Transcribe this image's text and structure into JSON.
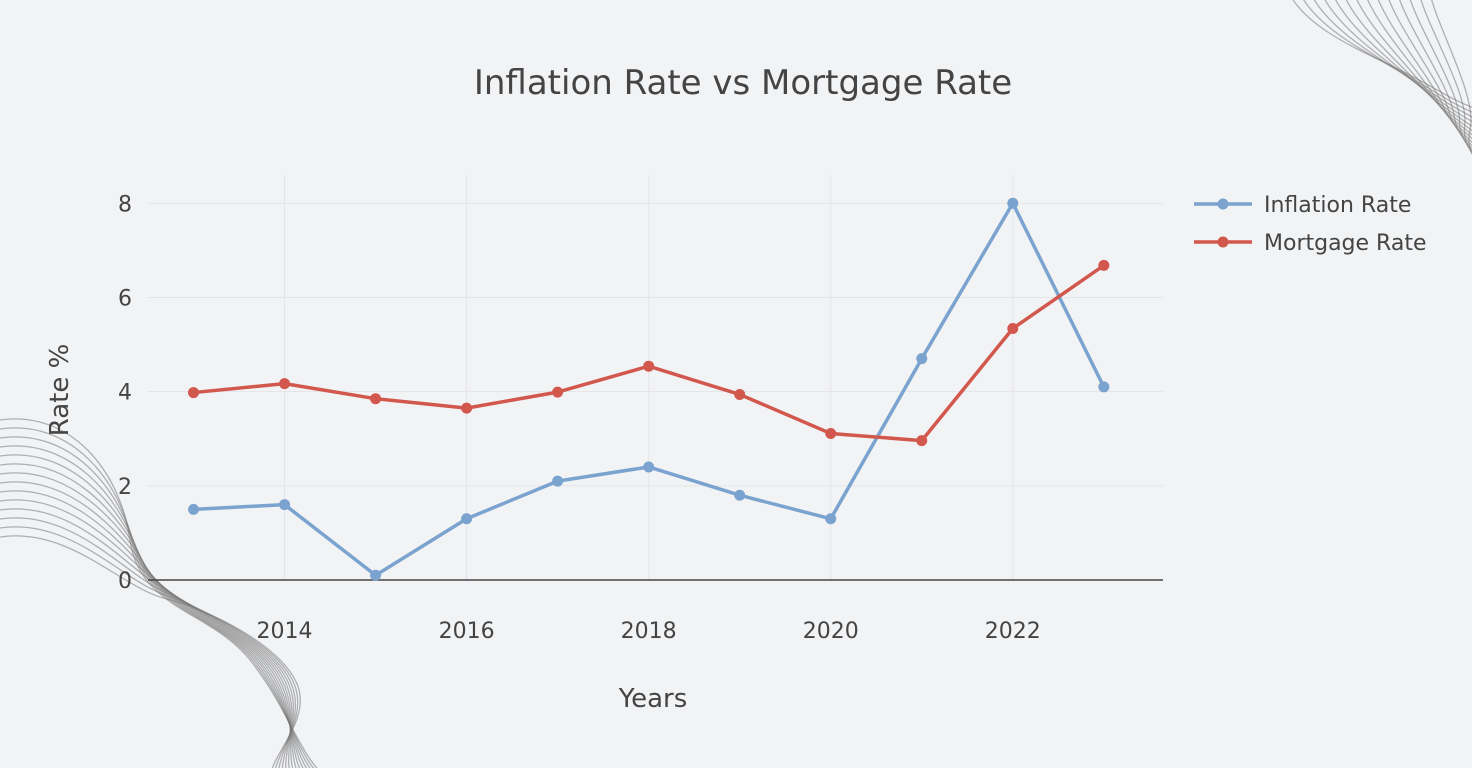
{
  "chart_data": {
    "type": "line",
    "title": "Inflation Rate vs Mortgage Rate",
    "xlabel": "Years",
    "ylabel": "Rate %",
    "x": [
      2013,
      2014,
      2015,
      2016,
      2017,
      2018,
      2019,
      2020,
      2021,
      2022,
      2023
    ],
    "xlim": [
      2012.5,
      2023.65
    ],
    "ylim": [
      0,
      8.6
    ],
    "x_ticks": [
      2014,
      2016,
      2018,
      2020,
      2022
    ],
    "y_ticks": [
      0,
      2,
      4,
      6,
      8
    ],
    "grid": true,
    "legend_position": "top-right",
    "series": [
      {
        "name": "Inflation Rate",
        "color": "#7ba3cf",
        "values": [
          1.5,
          1.6,
          0.1,
          1.3,
          2.1,
          2.4,
          1.8,
          1.3,
          4.7,
          8.0,
          4.1
        ]
      },
      {
        "name": "Mortgage Rate",
        "color": "#d2584e",
        "values": [
          3.98,
          4.17,
          3.85,
          3.65,
          3.99,
          4.54,
          3.94,
          3.11,
          2.96,
          5.34,
          6.68
        ]
      }
    ]
  }
}
